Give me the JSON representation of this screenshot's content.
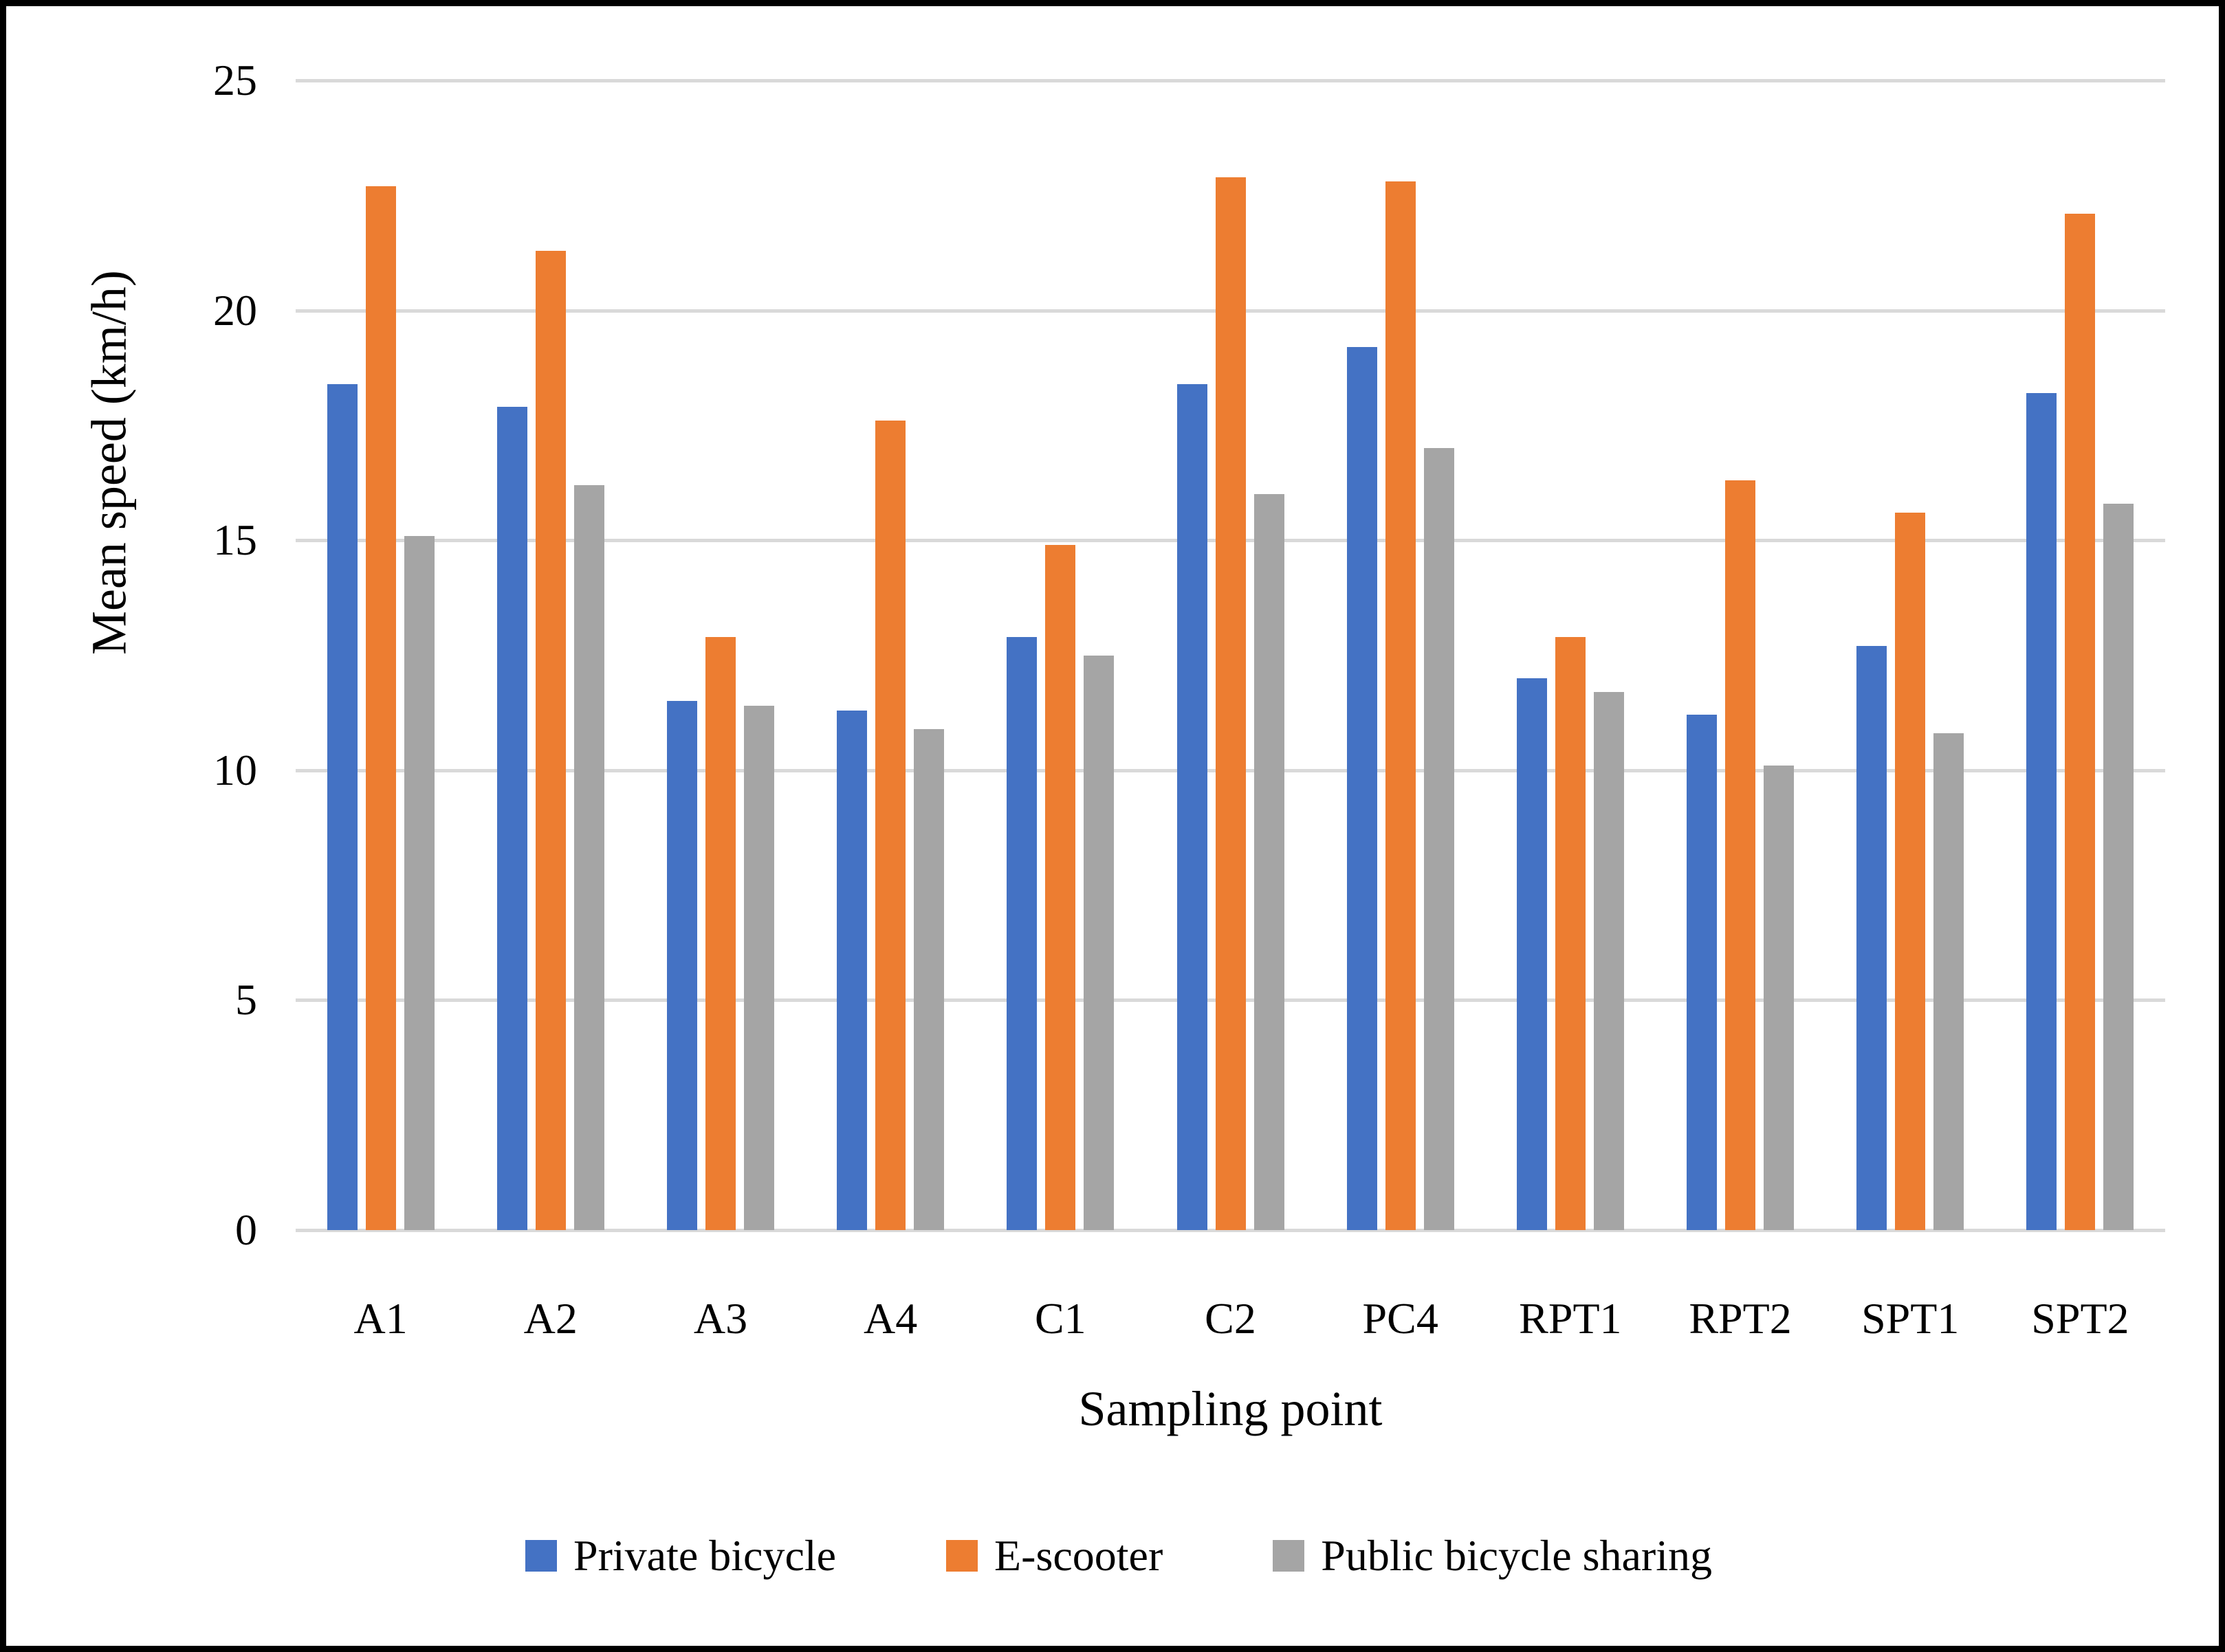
{
  "figure": {
    "background": "#ffffff",
    "border_color": "#000000"
  },
  "chart_data": {
    "type": "bar",
    "title": "",
    "xlabel": "Sampling point",
    "ylabel": "Mean speed (km/h)",
    "categories": [
      "A1",
      "A2",
      "A3",
      "A4",
      "C1",
      "C2",
      "PC4",
      "RPT1",
      "RPT2",
      "SPT1",
      "SPT2"
    ],
    "series": [
      {
        "name": "Private bicycle",
        "color": "#4472C4",
        "values": [
          18.4,
          17.9,
          11.5,
          11.3,
          12.9,
          18.4,
          19.2,
          12.0,
          11.2,
          12.7,
          18.2
        ]
      },
      {
        "name": "E-scooter",
        "color": "#ED7D31",
        "values": [
          22.7,
          21.3,
          12.9,
          17.6,
          14.9,
          22.9,
          22.8,
          12.9,
          16.3,
          15.6,
          22.1
        ]
      },
      {
        "name": "Public bicycle sharing",
        "color": "#A5A5A5",
        "values": [
          15.1,
          16.2,
          11.4,
          10.9,
          12.5,
          16.0,
          17.0,
          11.7,
          10.1,
          10.8,
          15.8
        ]
      }
    ],
    "ylim": [
      0,
      25
    ],
    "yticks": [
      0,
      5,
      10,
      15,
      20,
      25
    ],
    "grid": "horizontal",
    "gridline_color": "#D9D9D9",
    "legend_position": "bottom"
  }
}
